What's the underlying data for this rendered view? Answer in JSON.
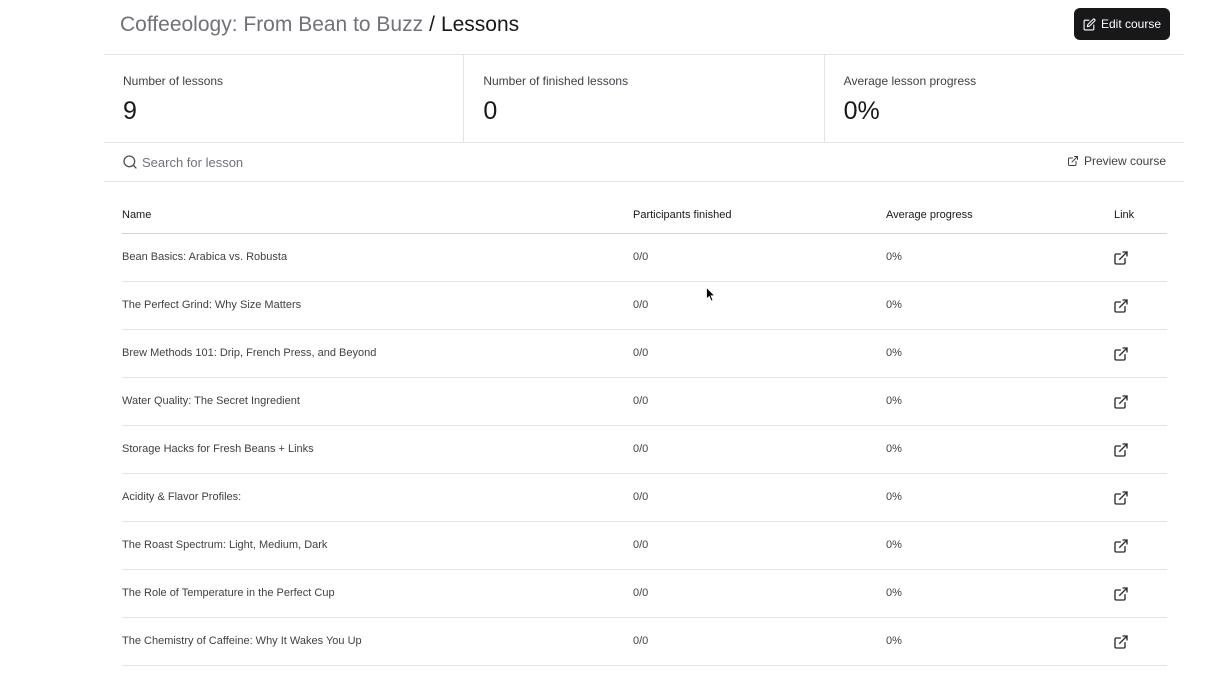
{
  "header": {
    "course_title": "Coffeeology: From Bean to Buzz",
    "separator": "/",
    "current_page": "Lessons",
    "edit_button_label": "Edit course"
  },
  "stats": [
    {
      "label": "Number of lessons",
      "value": "9"
    },
    {
      "label": "Number of finished lessons",
      "value": "0"
    },
    {
      "label": "Average lesson progress",
      "value": "0%"
    }
  ],
  "search": {
    "placeholder": "Search for lesson",
    "value": ""
  },
  "preview_link_label": "Preview course",
  "table": {
    "columns": [
      "Name",
      "Participants finished",
      "Average progress",
      "Link"
    ],
    "rows": [
      {
        "name": "Bean Basics: Arabica vs. Robusta",
        "participants": "0/0",
        "progress": "0%"
      },
      {
        "name": "The Perfect Grind: Why Size Matters",
        "participants": "0/0",
        "progress": "0%"
      },
      {
        "name": "Brew Methods 101: Drip, French Press, and Beyond",
        "participants": "0/0",
        "progress": "0%"
      },
      {
        "name": "Water Quality: The Secret Ingredient",
        "participants": "0/0",
        "progress": "0%"
      },
      {
        "name": "Storage Hacks for Fresh Beans + Links",
        "participants": "0/0",
        "progress": "0%"
      },
      {
        "name": "Acidity & Flavor Profiles:",
        "participants": "0/0",
        "progress": "0%"
      },
      {
        "name": "The Roast Spectrum: Light, Medium, Dark",
        "participants": "0/0",
        "progress": "0%"
      },
      {
        "name": "The Role of Temperature in the Perfect Cup",
        "participants": "0/0",
        "progress": "0%"
      },
      {
        "name": "The Chemistry of Caffeine: Why It Wakes You Up",
        "participants": "0/0",
        "progress": "0%"
      }
    ]
  },
  "icons": {
    "edit": "edit-icon",
    "search": "search-icon",
    "preview": "external-link-icon",
    "row_link": "external-link-icon"
  },
  "colors": {
    "primary_button": "#18181b",
    "muted_text": "#71717a",
    "border": "#e4e4e7"
  }
}
